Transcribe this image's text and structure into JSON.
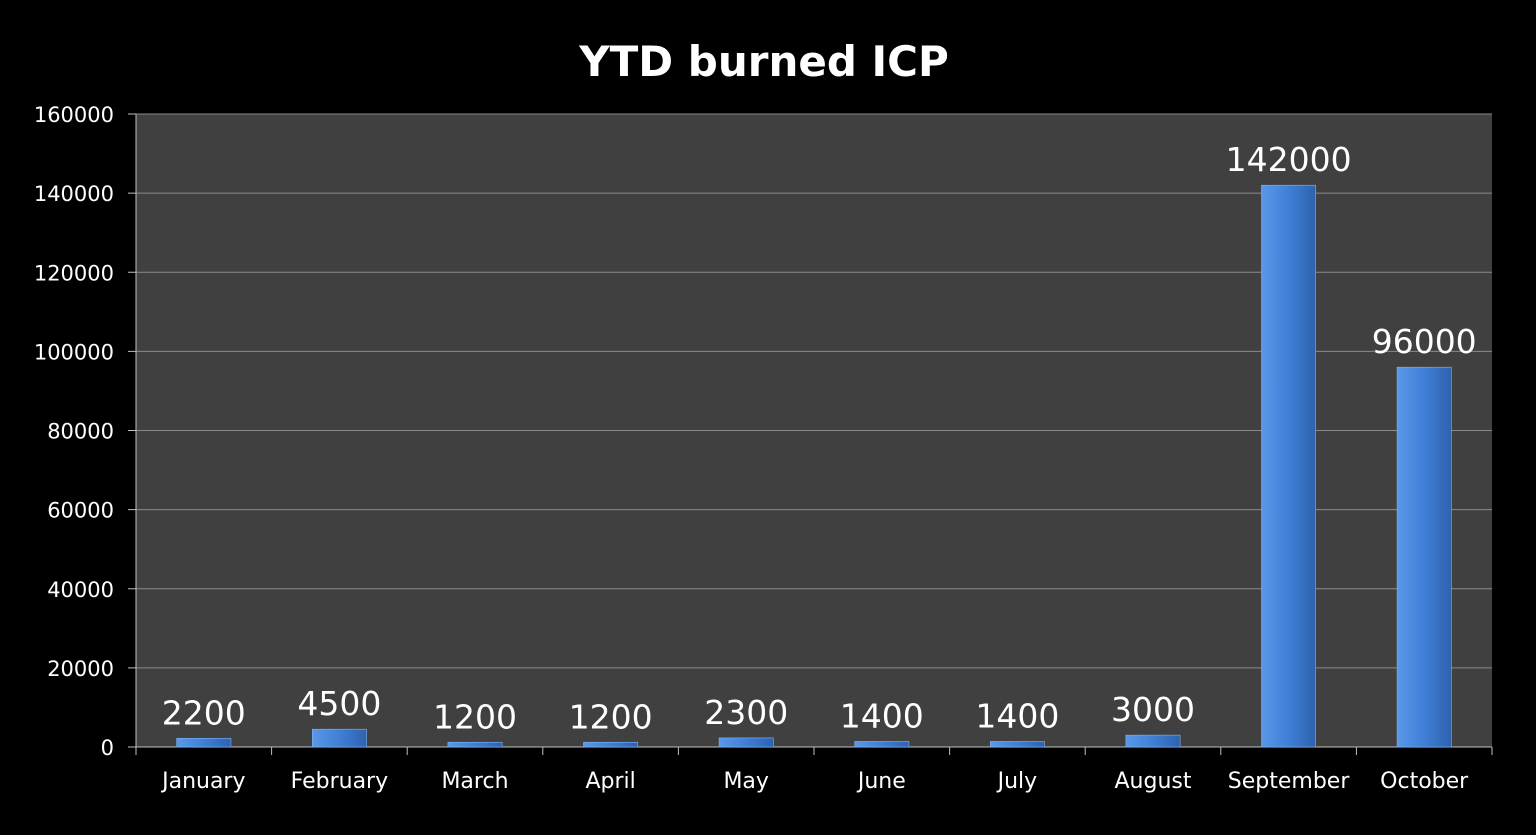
{
  "chart_data": {
    "type": "bar",
    "title": "YTD burned ICP",
    "xlabel": "",
    "ylabel": "",
    "categories": [
      "January",
      "February",
      "March",
      "April",
      "May",
      "June",
      "July",
      "August",
      "September",
      "October"
    ],
    "values": [
      2200,
      4500,
      1200,
      1200,
      2300,
      1400,
      1400,
      3000,
      142000,
      96000
    ],
    "data_labels": [
      "2200",
      "4500",
      "1200",
      "1200",
      "2300",
      "1400",
      "1400",
      "3000",
      "142000",
      "96000"
    ],
    "ylim": [
      0,
      160000
    ],
    "yticks": [
      0,
      20000,
      40000,
      60000,
      80000,
      100000,
      120000,
      140000,
      160000
    ],
    "ytick_labels": [
      "0",
      "20000",
      "40000",
      "60000",
      "80000",
      "100000",
      "120000",
      "140000",
      "160000"
    ],
    "grid": true,
    "legend": "none",
    "colors": {
      "background": "#000000",
      "plot_area": "#404040",
      "grid": "#8a8a8a",
      "bar": "#3f7fd6",
      "bar_dark": "#2e62ae",
      "text": "#ffffff"
    }
  }
}
